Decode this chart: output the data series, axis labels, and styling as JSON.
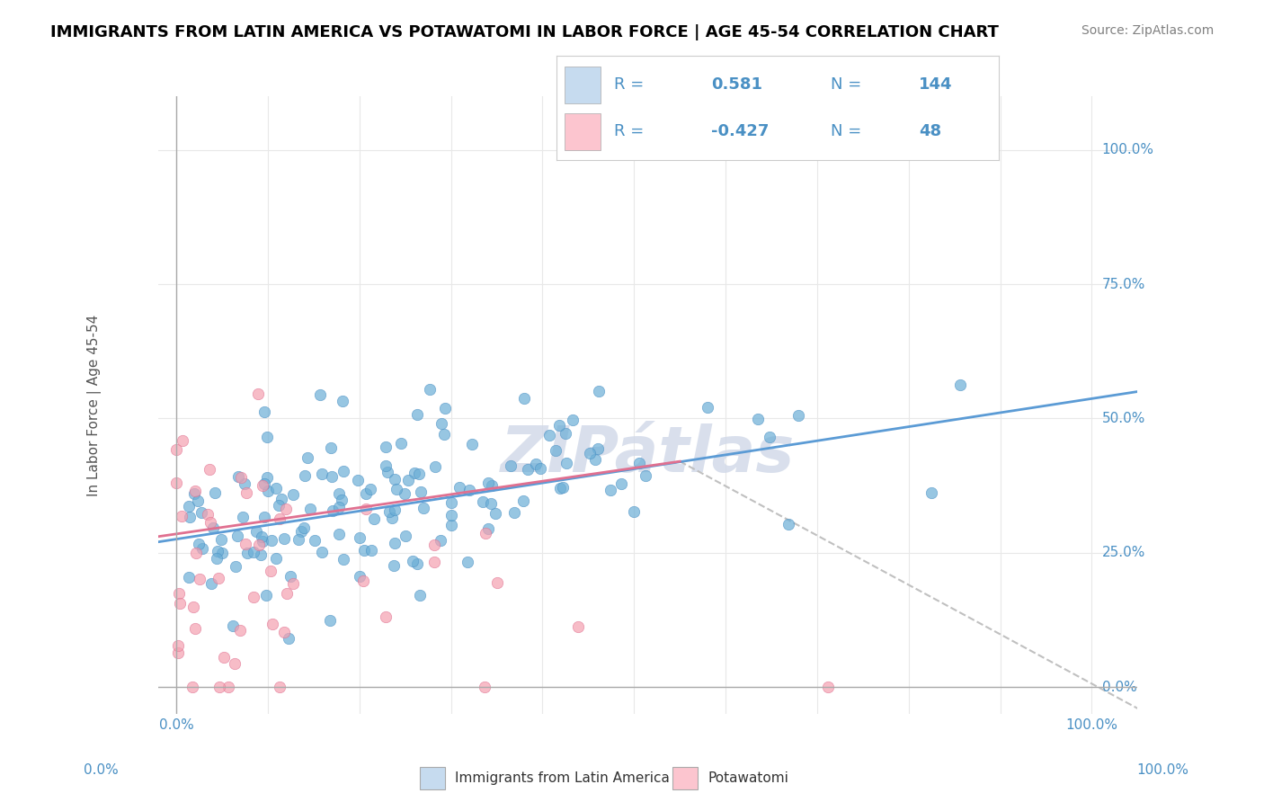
{
  "title": "IMMIGRANTS FROM LATIN AMERICA VS POTAWATOMI IN LABOR FORCE | AGE 45-54 CORRELATION CHART",
  "source_text": "Source: ZipAtlas.com",
  "xlabel": "",
  "ylabel": "In Labor Force | Age 45-54",
  "right_ytick_labels": [
    "0.0%",
    "25.0%",
    "50.0%",
    "75.0%",
    "100.0%"
  ],
  "right_ytick_values": [
    0,
    0.25,
    0.5,
    0.75,
    1.0
  ],
  "xtick_labels": [
    "0.0%",
    "100.0%"
  ],
  "xtick_values": [
    0,
    1.0
  ],
  "xlim": [
    -0.02,
    1.05
  ],
  "ylim": [
    -0.05,
    1.1
  ],
  "blue_R": 0.581,
  "blue_N": 144,
  "pink_R": -0.427,
  "pink_N": 48,
  "blue_color": "#6baed6",
  "blue_color_dark": "#4a90c4",
  "pink_color": "#f4a0b0",
  "pink_color_dark": "#e07090",
  "legend_box_blue": "#c6dbef",
  "legend_box_pink": "#fcc5cf",
  "blue_line_color": "#5b9bd5",
  "pink_line_color": "#e07090",
  "dashed_line_color": "#c0c0c0",
  "watermark_text": "ZIPátlas",
  "watermark_color": "#d0d8e8",
  "background_color": "#ffffff",
  "title_fontsize": 13,
  "source_fontsize": 10,
  "legend_fontsize": 13,
  "axis_label_fontsize": 11,
  "tick_fontsize": 11,
  "blue_scatter_seed": 42,
  "pink_scatter_seed": 7,
  "blue_line_start_x": -0.02,
  "blue_line_end_x": 1.05,
  "blue_line_start_y": 0.27,
  "blue_line_end_y": 0.55,
  "pink_line_start_x": -0.02,
  "pink_line_end_x": 0.55,
  "pink_line_start_y": 0.28,
  "pink_line_end_y": 0.42,
  "dashed_line_start_x": 0.55,
  "dashed_line_end_x": 1.05,
  "dashed_line_start_y": 0.42,
  "dashed_line_end_y": -0.04,
  "grid_color": "#e8e8e8",
  "right_axis_color": "#4a90c4"
}
